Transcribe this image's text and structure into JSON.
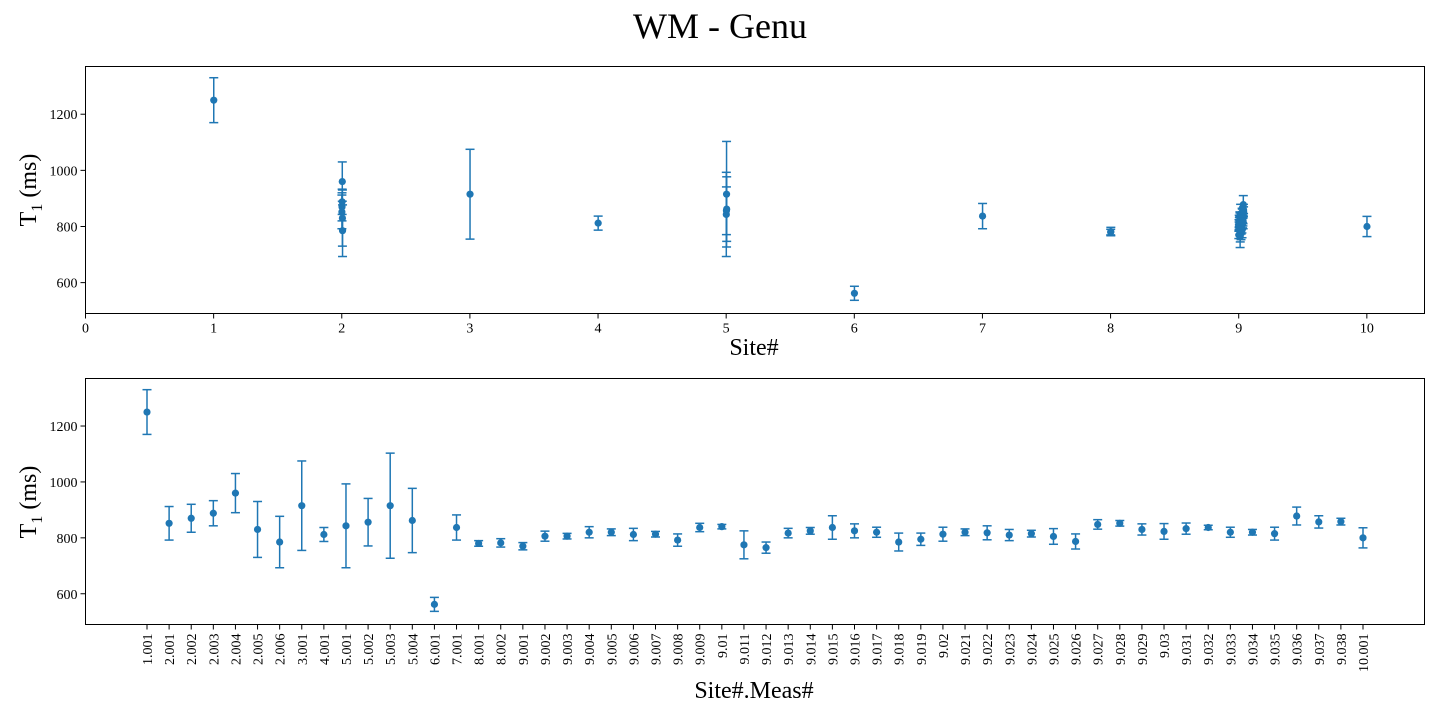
{
  "figure": {
    "title": "WM - Genu"
  },
  "chart_data": [
    {
      "type": "scatter",
      "subtype": "errorbar",
      "xlabel": "Site#",
      "ylabel_main": "T",
      "ylabel_sub": "1",
      "ylabel_tail": " (ms)",
      "xlim": [
        0,
        10.45
      ],
      "ylim": [
        490,
        1370
      ],
      "xticks": [
        0,
        1,
        2,
        3,
        4,
        5,
        6,
        7,
        8,
        9,
        10
      ],
      "xtick_labels": [
        "0",
        "1",
        "2",
        "3",
        "4",
        "5",
        "6",
        "7",
        "8",
        "9",
        "10"
      ],
      "yticks": [
        600,
        800,
        1000,
        1200
      ],
      "ytick_labels": [
        "600",
        "800",
        "1000",
        "1200"
      ],
      "color": "#1f77b4",
      "points": [
        {
          "x": 1.001,
          "y": 1250,
          "err": 80
        },
        {
          "x": 2.001,
          "y": 852,
          "err": 60
        },
        {
          "x": 2.002,
          "y": 870,
          "err": 50
        },
        {
          "x": 2.003,
          "y": 888,
          "err": 45
        },
        {
          "x": 2.004,
          "y": 960,
          "err": 70
        },
        {
          "x": 2.005,
          "y": 830,
          "err": 100
        },
        {
          "x": 2.006,
          "y": 785,
          "err": 92
        },
        {
          "x": 3.001,
          "y": 915,
          "err": 160
        },
        {
          "x": 4.001,
          "y": 812,
          "err": 25
        },
        {
          "x": 5.001,
          "y": 843,
          "err": 150
        },
        {
          "x": 5.002,
          "y": 856,
          "err": 85
        },
        {
          "x": 5.003,
          "y": 915,
          "err": 188
        },
        {
          "x": 5.004,
          "y": 862,
          "err": 115
        },
        {
          "x": 6.001,
          "y": 562,
          "err": 25
        },
        {
          "x": 7.001,
          "y": 837,
          "err": 45
        },
        {
          "x": 8.001,
          "y": 780,
          "err": 10
        },
        {
          "x": 8.002,
          "y": 782,
          "err": 15
        },
        {
          "x": 9.001,
          "y": 770,
          "err": 13
        },
        {
          "x": 9.002,
          "y": 806,
          "err": 18
        },
        {
          "x": 9.003,
          "y": 806,
          "err": 10
        },
        {
          "x": 9.004,
          "y": 820,
          "err": 20
        },
        {
          "x": 9.005,
          "y": 820,
          "err": 12
        },
        {
          "x": 9.006,
          "y": 812,
          "err": 22
        },
        {
          "x": 9.007,
          "y": 813,
          "err": 10
        },
        {
          "x": 9.008,
          "y": 792,
          "err": 22
        },
        {
          "x": 9.009,
          "y": 837,
          "err": 15
        },
        {
          "x": 9.01,
          "y": 840,
          "err": 8
        },
        {
          "x": 9.011,
          "y": 775,
          "err": 50
        },
        {
          "x": 9.012,
          "y": 765,
          "err": 20
        },
        {
          "x": 9.013,
          "y": 817,
          "err": 17
        },
        {
          "x": 9.014,
          "y": 825,
          "err": 12
        },
        {
          "x": 9.015,
          "y": 837,
          "err": 42
        },
        {
          "x": 9.016,
          "y": 825,
          "err": 25
        },
        {
          "x": 9.017,
          "y": 820,
          "err": 18
        },
        {
          "x": 9.018,
          "y": 785,
          "err": 32
        },
        {
          "x": 9.019,
          "y": 795,
          "err": 22
        },
        {
          "x": 9.02,
          "y": 813,
          "err": 25
        },
        {
          "x": 9.021,
          "y": 820,
          "err": 12
        },
        {
          "x": 9.022,
          "y": 818,
          "err": 25
        },
        {
          "x": 9.023,
          "y": 810,
          "err": 20
        },
        {
          "x": 9.024,
          "y": 815,
          "err": 12
        },
        {
          "x": 9.025,
          "y": 805,
          "err": 28
        },
        {
          "x": 9.026,
          "y": 787,
          "err": 27
        },
        {
          "x": 9.027,
          "y": 848,
          "err": 17
        },
        {
          "x": 9.028,
          "y": 852,
          "err": 10
        },
        {
          "x": 9.029,
          "y": 830,
          "err": 20
        },
        {
          "x": 9.03,
          "y": 823,
          "err": 28
        },
        {
          "x": 9.031,
          "y": 833,
          "err": 20
        },
        {
          "x": 9.032,
          "y": 837,
          "err": 8
        },
        {
          "x": 9.033,
          "y": 820,
          "err": 18
        },
        {
          "x": 9.034,
          "y": 820,
          "err": 10
        },
        {
          "x": 9.035,
          "y": 815,
          "err": 23
        },
        {
          "x": 9.036,
          "y": 878,
          "err": 32
        },
        {
          "x": 9.037,
          "y": 857,
          "err": 22
        },
        {
          "x": 9.038,
          "y": 858,
          "err": 12
        },
        {
          "x": 10.001,
          "y": 800,
          "err": 36
        }
      ]
    },
    {
      "type": "scatter",
      "subtype": "errorbar",
      "xlabel": "Site#.Meas#",
      "ylabel_main": "T",
      "ylabel_sub": "1",
      "ylabel_tail": " (ms)",
      "ylim": [
        490,
        1370
      ],
      "yticks": [
        600,
        800,
        1000,
        1200
      ],
      "ytick_labels": [
        "600",
        "800",
        "1000",
        "1200"
      ],
      "color": "#1f77b4",
      "categories": [
        "1.001",
        "2.001",
        "2.002",
        "2.003",
        "2.004",
        "2.005",
        "2.006",
        "3.001",
        "4.001",
        "5.001",
        "5.002",
        "5.003",
        "5.004",
        "6.001",
        "7.001",
        "8.001",
        "8.002",
        "9.001",
        "9.002",
        "9.003",
        "9.004",
        "9.005",
        "9.006",
        "9.007",
        "9.008",
        "9.009",
        "9.01",
        "9.011",
        "9.012",
        "9.013",
        "9.014",
        "9.015",
        "9.016",
        "9.017",
        "9.018",
        "9.019",
        "9.02",
        "9.021",
        "9.022",
        "9.023",
        "9.024",
        "9.025",
        "9.026",
        "9.027",
        "9.028",
        "9.029",
        "9.03",
        "9.031",
        "9.032",
        "9.033",
        "9.034",
        "9.035",
        "9.036",
        "9.037",
        "9.038",
        "10.001"
      ],
      "values": [
        1250,
        852,
        870,
        888,
        960,
        830,
        785,
        915,
        812,
        843,
        856,
        915,
        862,
        562,
        837,
        780,
        782,
        770,
        806,
        806,
        820,
        820,
        812,
        813,
        792,
        837,
        840,
        775,
        765,
        817,
        825,
        837,
        825,
        820,
        785,
        795,
        813,
        820,
        818,
        810,
        815,
        805,
        787,
        848,
        852,
        830,
        823,
        833,
        837,
        820,
        820,
        815,
        878,
        857,
        858,
        800
      ],
      "errors": [
        80,
        60,
        50,
        45,
        70,
        100,
        92,
        160,
        25,
        150,
        85,
        188,
        115,
        25,
        45,
        10,
        15,
        13,
        18,
        10,
        20,
        12,
        22,
        10,
        22,
        15,
        8,
        50,
        20,
        17,
        12,
        42,
        25,
        18,
        32,
        22,
        25,
        12,
        25,
        20,
        12,
        28,
        27,
        17,
        10,
        20,
        28,
        20,
        8,
        18,
        10,
        23,
        32,
        22,
        12,
        36
      ]
    }
  ]
}
